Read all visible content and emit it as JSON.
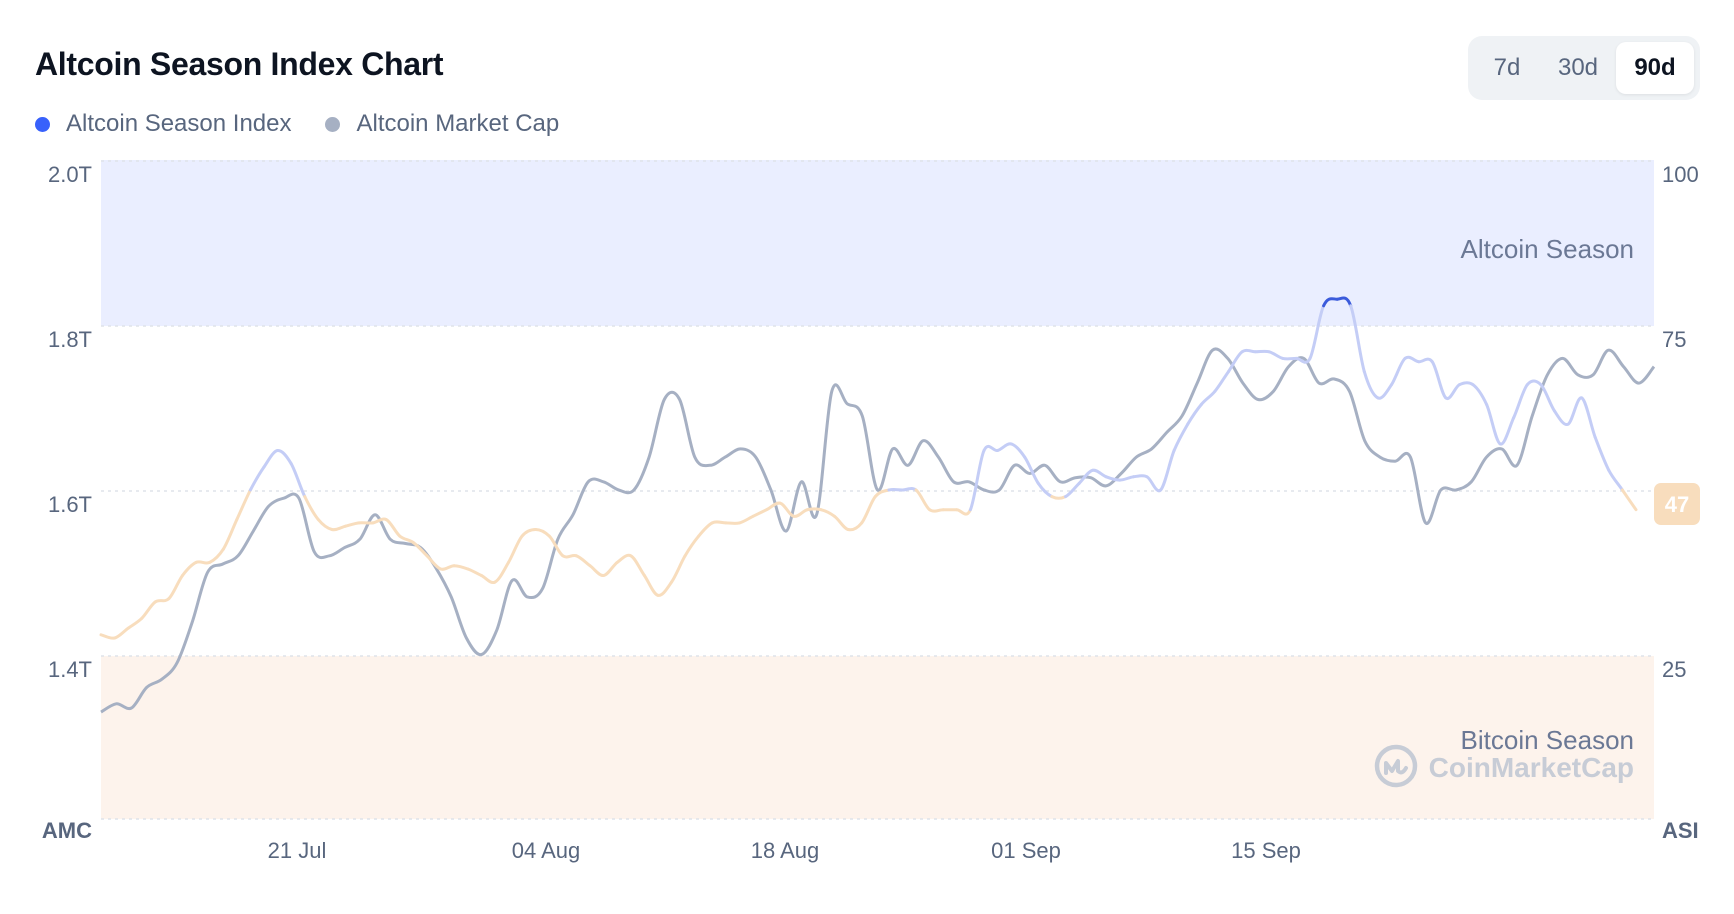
{
  "header": {
    "title": "Altcoin Season Index Chart"
  },
  "legend": [
    {
      "label": "Altcoin Season Index",
      "color": "#3861fb"
    },
    {
      "label": "Altcoin Market Cap",
      "color": "#a6b0c3"
    }
  ],
  "range_selector": {
    "options": [
      "7d",
      "30d",
      "90d"
    ],
    "selected": "90d"
  },
  "chart_data": {
    "type": "line",
    "title": "Altcoin Season Index Chart",
    "x_ticks": [
      "21 Jul",
      "04 Aug",
      "18 Aug",
      "01 Sep",
      "15 Sep"
    ],
    "x_range": [
      "2024-07-10",
      "2024-10-09"
    ],
    "y_left": {
      "label": "AMC",
      "ticks": [
        "2.0T",
        "1.8T",
        "1.6T",
        "1.4T"
      ],
      "range": [
        1.2,
        2.0
      ]
    },
    "y_right": {
      "label": "ASI",
      "ticks": [
        "100",
        "75",
        "25"
      ],
      "range": [
        0,
        100
      ]
    },
    "zones": [
      {
        "label": "Altcoin Season",
        "from": 75,
        "to": 100,
        "color": "#eaeeff"
      },
      {
        "label": "Bitcoin Season",
        "from": 0,
        "to": 25,
        "color": "#fdf3ec"
      }
    ],
    "current_value": "47",
    "watermark": "CoinMarketCap",
    "series": [
      {
        "name": "Altcoin Season Index",
        "axis": "right",
        "colors": {
          "altcoin": "#3b5bdb",
          "neutral_high": "#c4cdf6",
          "neutral_low": "#f8ddbd"
        },
        "points": [
          [
            0,
            28
          ],
          [
            1,
            27.5
          ],
          [
            2,
            29
          ],
          [
            3,
            30.5
          ],
          [
            4,
            33
          ],
          [
            5,
            33.5
          ],
          [
            6,
            37
          ],
          [
            7,
            39
          ],
          [
            8,
            39
          ],
          [
            9,
            41
          ],
          [
            10,
            45.5
          ],
          [
            11,
            50
          ],
          [
            12,
            53.5
          ],
          [
            13,
            56
          ],
          [
            14,
            54
          ],
          [
            15,
            49
          ],
          [
            16,
            45.5
          ],
          [
            17,
            44
          ],
          [
            18,
            44.5
          ],
          [
            19,
            45
          ],
          [
            20,
            45
          ],
          [
            21,
            45.5
          ],
          [
            22,
            43
          ],
          [
            23,
            42
          ],
          [
            24,
            40
          ],
          [
            25,
            38
          ],
          [
            26,
            38.5
          ],
          [
            27,
            38
          ],
          [
            28,
            37
          ],
          [
            29,
            36
          ],
          [
            30,
            39
          ],
          [
            31,
            43
          ],
          [
            32,
            44
          ],
          [
            33,
            43
          ],
          [
            34,
            40
          ],
          [
            35,
            40
          ],
          [
            36,
            38.5
          ],
          [
            37,
            37
          ],
          [
            38,
            39
          ],
          [
            39,
            40
          ],
          [
            40,
            37
          ],
          [
            41,
            34
          ],
          [
            42,
            36
          ],
          [
            43,
            40
          ],
          [
            44,
            43
          ],
          [
            45,
            45
          ],
          [
            46,
            45
          ],
          [
            47,
            45
          ],
          [
            48,
            46
          ],
          [
            49,
            47
          ],
          [
            50,
            48
          ],
          [
            51,
            46
          ],
          [
            52,
            47
          ],
          [
            53,
            47
          ],
          [
            54,
            46
          ],
          [
            55,
            44
          ],
          [
            56,
            45
          ],
          [
            57,
            49
          ],
          [
            58,
            50
          ],
          [
            59,
            50
          ],
          [
            60,
            50
          ],
          [
            61,
            47
          ],
          [
            62,
            47
          ],
          [
            63,
            47
          ],
          [
            64,
            47
          ],
          [
            65,
            56
          ],
          [
            66,
            56
          ],
          [
            67,
            57
          ],
          [
            68,
            55
          ],
          [
            69,
            51
          ],
          [
            70,
            49
          ],
          [
            71,
            49
          ],
          [
            72,
            51
          ],
          [
            73,
            53
          ],
          [
            74,
            52
          ],
          [
            75,
            51.5
          ],
          [
            76,
            52
          ],
          [
            77,
            52
          ],
          [
            78,
            50
          ],
          [
            79,
            56
          ],
          [
            80,
            60
          ],
          [
            81,
            63
          ],
          [
            82,
            65
          ],
          [
            83,
            68
          ],
          [
            84,
            71
          ],
          [
            85,
            71
          ],
          [
            86,
            71
          ],
          [
            87,
            70
          ],
          [
            88,
            70
          ],
          [
            89,
            70
          ],
          [
            90,
            78
          ],
          [
            91,
            79
          ],
          [
            92,
            78
          ],
          [
            93,
            68
          ],
          [
            94,
            64
          ],
          [
            95,
            66
          ],
          [
            96,
            70
          ],
          [
            97,
            69.5
          ],
          [
            98,
            69.5
          ],
          [
            99,
            64
          ],
          [
            100,
            66
          ],
          [
            101,
            66
          ],
          [
            102,
            63
          ],
          [
            103,
            57
          ],
          [
            104,
            61
          ],
          [
            105,
            66
          ],
          [
            106,
            66
          ],
          [
            107,
            62
          ],
          [
            108,
            60
          ],
          [
            109,
            64
          ],
          [
            110,
            58
          ],
          [
            111,
            53
          ],
          [
            112,
            50
          ],
          [
            113,
            47
          ]
        ]
      },
      {
        "name": "Altcoin Market Cap",
        "axis": "left",
        "color": "#a6b0c3",
        "points": [
          [
            0,
            1.33
          ],
          [
            1,
            1.34
          ],
          [
            2,
            1.335
          ],
          [
            3,
            1.36
          ],
          [
            4,
            1.37
          ],
          [
            5,
            1.39
          ],
          [
            6,
            1.44
          ],
          [
            7,
            1.5
          ],
          [
            8,
            1.51
          ],
          [
            9,
            1.52
          ],
          [
            10,
            1.55
          ],
          [
            11,
            1.58
          ],
          [
            12,
            1.59
          ],
          [
            13,
            1.59
          ],
          [
            14,
            1.525
          ],
          [
            15,
            1.52
          ],
          [
            16,
            1.53
          ],
          [
            17,
            1.54
          ],
          [
            18,
            1.57
          ],
          [
            19,
            1.54
          ],
          [
            20,
            1.535
          ],
          [
            21,
            1.53
          ],
          [
            22,
            1.505
          ],
          [
            23,
            1.47
          ],
          [
            24,
            1.42
          ],
          [
            25,
            1.4
          ],
          [
            26,
            1.43
          ],
          [
            27,
            1.49
          ],
          [
            28,
            1.47
          ],
          [
            29,
            1.48
          ],
          [
            30,
            1.54
          ],
          [
            31,
            1.57
          ],
          [
            32,
            1.61
          ],
          [
            33,
            1.61
          ],
          [
            34,
            1.6
          ],
          [
            35,
            1.6
          ],
          [
            36,
            1.64
          ],
          [
            37,
            1.71
          ],
          [
            38,
            1.71
          ],
          [
            39,
            1.64
          ],
          [
            40,
            1.63
          ],
          [
            41,
            1.64
          ],
          [
            42,
            1.65
          ],
          [
            43,
            1.64
          ],
          [
            44,
            1.6
          ],
          [
            45,
            1.55
          ],
          [
            46,
            1.61
          ],
          [
            47,
            1.57
          ],
          [
            48,
            1.72
          ],
          [
            49,
            1.705
          ],
          [
            50,
            1.69
          ],
          [
            51,
            1.6
          ],
          [
            52,
            1.65
          ],
          [
            53,
            1.63
          ],
          [
            54,
            1.66
          ],
          [
            55,
            1.64
          ],
          [
            56,
            1.61
          ],
          [
            57,
            1.61
          ],
          [
            58,
            1.6
          ],
          [
            59,
            1.6
          ],
          [
            60,
            1.63
          ],
          [
            61,
            1.62
          ],
          [
            62,
            1.63
          ],
          [
            63,
            1.61
          ],
          [
            64,
            1.615
          ],
          [
            65,
            1.615
          ],
          [
            66,
            1.605
          ],
          [
            67,
            1.62
          ],
          [
            68,
            1.64
          ],
          [
            69,
            1.65
          ],
          [
            70,
            1.67
          ],
          [
            71,
            1.69
          ],
          [
            72,
            1.73
          ],
          [
            73,
            1.77
          ],
          [
            74,
            1.76
          ],
          [
            75,
            1.73
          ],
          [
            76,
            1.71
          ],
          [
            77,
            1.72
          ],
          [
            78,
            1.75
          ],
          [
            79,
            1.76
          ],
          [
            80,
            1.73
          ],
          [
            81,
            1.735
          ],
          [
            82,
            1.72
          ],
          [
            83,
            1.66
          ],
          [
            84,
            1.64
          ],
          [
            85,
            1.635
          ],
          [
            86,
            1.64
          ],
          [
            87,
            1.56
          ],
          [
            88,
            1.6
          ],
          [
            89,
            1.6
          ],
          [
            90,
            1.61
          ],
          [
            91,
            1.64
          ],
          [
            92,
            1.65
          ],
          [
            93,
            1.63
          ],
          [
            94,
            1.69
          ],
          [
            95,
            1.74
          ],
          [
            96,
            1.76
          ],
          [
            97,
            1.74
          ],
          [
            98,
            1.74
          ],
          [
            99,
            1.77
          ],
          [
            100,
            1.75
          ],
          [
            101,
            1.73
          ],
          [
            102,
            1.75
          ]
        ]
      }
    ]
  }
}
